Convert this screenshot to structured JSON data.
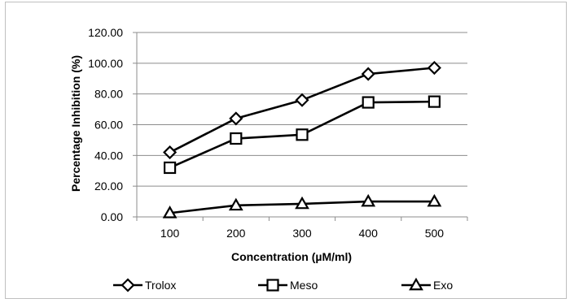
{
  "chart_data": {
    "type": "line",
    "title": "",
    "xlabel": "Concentration (µM/ml)",
    "ylabel": "Percentage Inhibition (%)",
    "categories": [
      "100",
      "200",
      "300",
      "400",
      "500"
    ],
    "ylim": [
      0,
      120
    ],
    "ytick_labels": [
      "0.00",
      "20.00",
      "40.00",
      "60.00",
      "80.00",
      "100.00",
      "120.00"
    ],
    "grid": "horizontal",
    "legend_position": "bottom",
    "series": [
      {
        "name": "Trolox",
        "marker": "diamond",
        "values": [
          42,
          64,
          76,
          93,
          97
        ]
      },
      {
        "name": "Meso",
        "marker": "square",
        "values": [
          32,
          51,
          53.5,
          74.5,
          75
        ]
      },
      {
        "name": "Exo",
        "marker": "triangle",
        "values": [
          2.5,
          7.5,
          8.5,
          10,
          10
        ]
      }
    ]
  }
}
